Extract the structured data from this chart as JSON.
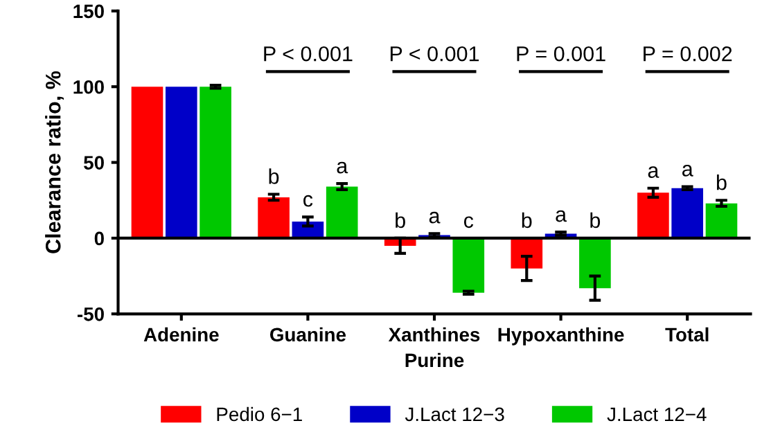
{
  "chart_data": {
    "type": "bar",
    "xlabel": "Purine",
    "ylabel": "Clearance ratio, %",
    "categories": [
      "Adenine",
      "Guanine",
      "Xanthines",
      "Hypoxanthine",
      "Total"
    ],
    "series": [
      {
        "name": "Pedio 6−1",
        "color": "#ff0000",
        "values": [
          100,
          27,
          -5,
          -20,
          30
        ],
        "errors": [
          null,
          2,
          5,
          8,
          3
        ],
        "value_labels": [
          null,
          "b",
          "b",
          "b",
          "a"
        ]
      },
      {
        "name": "J.Lact 12−3",
        "color": "#0000c8",
        "values": [
          100,
          11,
          2,
          3,
          33
        ],
        "errors": [
          null,
          3,
          1,
          1,
          1
        ],
        "value_labels": [
          null,
          "c",
          "a",
          "a",
          "a"
        ]
      },
      {
        "name": "J.Lact 12−4",
        "color": "#00c800",
        "values": [
          100,
          34,
          -36,
          -33,
          23
        ],
        "errors": [
          1,
          2,
          1,
          8,
          2
        ],
        "value_labels": [
          null,
          "a",
          "c",
          "b",
          "b"
        ]
      }
    ],
    "annotations": [
      "P < 0.001",
      "P < 0.001",
      "P = 0.001",
      "P = 0.002"
    ],
    "ref_lines": [
      {
        "axis": "y",
        "value": 0,
        "color": "#000000"
      }
    ],
    "ylim": [
      -50,
      150
    ],
    "yticks": [
      -50,
      0,
      50,
      100,
      150
    ],
    "grid": false,
    "legend": "bottom"
  }
}
